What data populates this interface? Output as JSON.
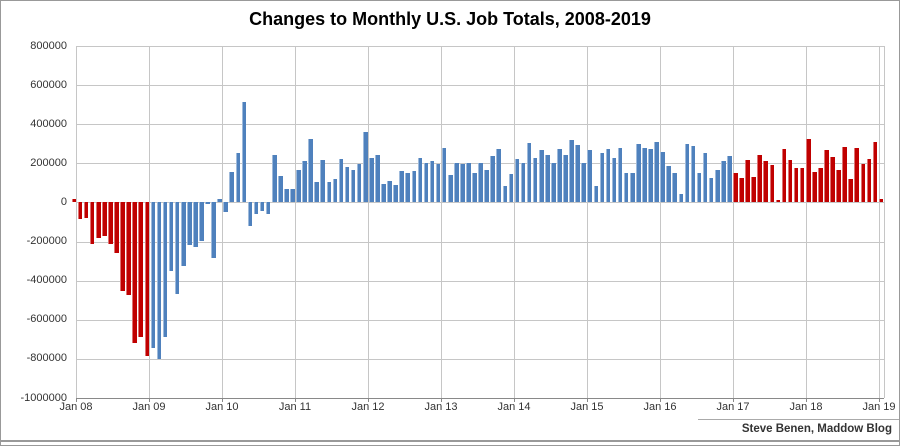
{
  "title": "Changes to Monthly U.S. Job Totals, 2008-2019",
  "attribution": "Steve Benen, Maddow Blog",
  "colors": {
    "bar_red": "#C00000",
    "bar_blue": "#4F81BD",
    "bar_edge_highlight": "rgba(255,255,255,0.45)",
    "gridline": "#C6C6C6",
    "axis_line": "#898989",
    "tick_text": "#333333",
    "title_text": "#000000",
    "frame_border": "#999999",
    "background": "#FFFFFF"
  },
  "chart_data": {
    "type": "bar",
    "title": "Changes to Monthly U.S. Job Totals, 2008-2019",
    "xlabel": "",
    "ylabel": "",
    "x_start": "Jan 2008",
    "x_end": "Feb 2019",
    "frequency": "monthly",
    "x_tick_labels": [
      "Jan 08",
      "Jan 09",
      "Jan 10",
      "Jan 11",
      "Jan 12",
      "Jan 13",
      "Jan 14",
      "Jan 15",
      "Jan 16",
      "Jan 17",
      "Jan 18",
      "Jan 19"
    ],
    "y_tick_values": [
      800000,
      600000,
      400000,
      200000,
      0,
      -200000,
      -400000,
      -600000,
      -800000,
      -1000000
    ],
    "ylim": [
      -1000000,
      800000
    ],
    "grid": true,
    "legend": false,
    "series": [
      {
        "name": "Monthly change in U.S. jobs",
        "values": [
          18000,
          -86000,
          -80000,
          -214000,
          -182000,
          -172000,
          -210000,
          -259000,
          -452000,
          -474000,
          -720000,
          -690000,
          -783000,
          -743000,
          -800000,
          -686000,
          -351000,
          -467000,
          -327000,
          -216000,
          -227000,
          -198000,
          -6000,
          -283000,
          18000,
          -50000,
          156000,
          251000,
          516000,
          -122000,
          -61000,
          -42000,
          -57000,
          241000,
          137000,
          71000,
          70000,
          168000,
          212000,
          322000,
          102000,
          217000,
          106000,
          122000,
          221000,
          183000,
          164000,
          196000,
          360000,
          226000,
          243000,
          96000,
          110000,
          88000,
          160000,
          150000,
          161000,
          225000,
          203000,
          214000,
          197000,
          280000,
          141000,
          203000,
          199000,
          201000,
          149000,
          202000,
          164000,
          237000,
          274000,
          84000,
          144000,
          222000,
          203000,
          304000,
          229000,
          267000,
          243000,
          203000,
          271000,
          243000,
          321000,
          292000,
          201000,
          266000,
          84000,
          251000,
          273000,
          228000,
          277000,
          150000,
          149000,
          300000,
          280000,
          271000,
          310000,
          260000,
          186000,
          153000,
          43000,
          297000,
          291000,
          150000,
          255000,
          124000,
          164000,
          210000,
          240000,
          150000,
          127000,
          217000,
          132000,
          241000,
          212000,
          190000,
          15000,
          271000,
          216000,
          175000,
          176000,
          324000,
          155000,
          175000,
          268000,
          230000,
          165000,
          286000,
          119000,
          277000,
          196000,
          222000,
          311000,
          20000
        ]
      }
    ],
    "color_segments": [
      {
        "start_index": 0,
        "end_index": 12,
        "color": "#C00000",
        "months": "Jan 2008 - Jan 2009"
      },
      {
        "start_index": 13,
        "end_index": 108,
        "color": "#4F81BD",
        "months": "Feb 2009 - Jan 2017"
      },
      {
        "start_index": 109,
        "end_index": 133,
        "color": "#C00000",
        "months": "Feb 2017 - Feb 2019"
      }
    ]
  }
}
